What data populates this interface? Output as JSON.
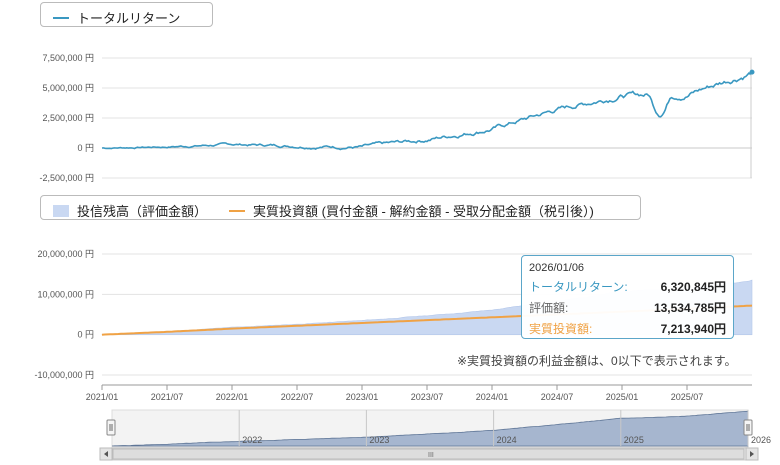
{
  "colors": {
    "return_line": "#3a98c1",
    "area_fill": "#c9d8f2",
    "invested_line": "#f0a245",
    "navigator_fill": "#a6b6cf",
    "navigator_line": "#5e7596"
  },
  "legend_top": {
    "items": [
      {
        "label": "トータルリターン"
      }
    ]
  },
  "legend_middle": {
    "items": [
      {
        "label": "投信残高（評価金額）"
      },
      {
        "label": "実質投資額 (買付金額 - 解約金額 - 受取分配金額（税引後）)"
      }
    ]
  },
  "tooltip": {
    "date": "2026/01/06",
    "rows": [
      {
        "label": "トータルリターン:",
        "value": "6,320,845円"
      },
      {
        "label": "評価額:",
        "value": "13,534,785円"
      },
      {
        "label": "実質投資額:",
        "value": "7,213,940円"
      }
    ]
  },
  "note": "※実質投資額の利益金額は、0以下で表示されます。",
  "chart_data": [
    {
      "type": "line",
      "series": [
        {
          "name": "トータルリターン"
        }
      ],
      "y_ticks": [
        "7,500,000 円",
        "5,000,000 円",
        "2,500,000 円",
        "0 円",
        "-2,500,000 円"
      ],
      "ylim": [
        -2500000,
        7500000
      ],
      "x": [
        "2021/01",
        "2021/07",
        "2022/01",
        "2022/07",
        "2023/01",
        "2023/07",
        "2024/01",
        "2024/07",
        "2025/01",
        "2025/07",
        "2026/01"
      ],
      "values": [
        0,
        100000,
        300000,
        180000,
        80000,
        700000,
        1600000,
        3200000,
        4400000,
        4500000,
        6320845
      ]
    },
    {
      "type": "area",
      "series": [
        {
          "name": "投信残高（評価金額）"
        },
        {
          "name": "実質投資額 (買付金額 - 解約金額 - 受取分配金額（税引後）)"
        }
      ],
      "y_ticks": [
        "20,000,000 円",
        "10,000,000 円",
        "0 円",
        "-10,000,000 円"
      ],
      "ylim": [
        -10000000,
        20000000
      ],
      "x_ticks": [
        "2021/01",
        "2021/07",
        "2022/01",
        "2022/07",
        "2023/01",
        "2023/07",
        "2024/01",
        "2024/07",
        "2025/01",
        "2025/07"
      ],
      "x": [
        "2021/01",
        "2021/07",
        "2022/01",
        "2022/07",
        "2023/01",
        "2023/07",
        "2024/01",
        "2024/07",
        "2025/01",
        "2025/07",
        "2026/01"
      ],
      "balance": [
        0,
        800000,
        1800000,
        2600000,
        3500000,
        4700000,
        6100000,
        8300000,
        10700000,
        11500000,
        13534785
      ],
      "invested": [
        0,
        700000,
        1500000,
        2200000,
        2900000,
        3600000,
        4300000,
        5000000,
        5700000,
        6400000,
        7213940
      ]
    },
    {
      "type": "area",
      "role": "navigator",
      "x_ticks": [
        "2022",
        "2023",
        "2024",
        "2025",
        "2026"
      ]
    }
  ]
}
